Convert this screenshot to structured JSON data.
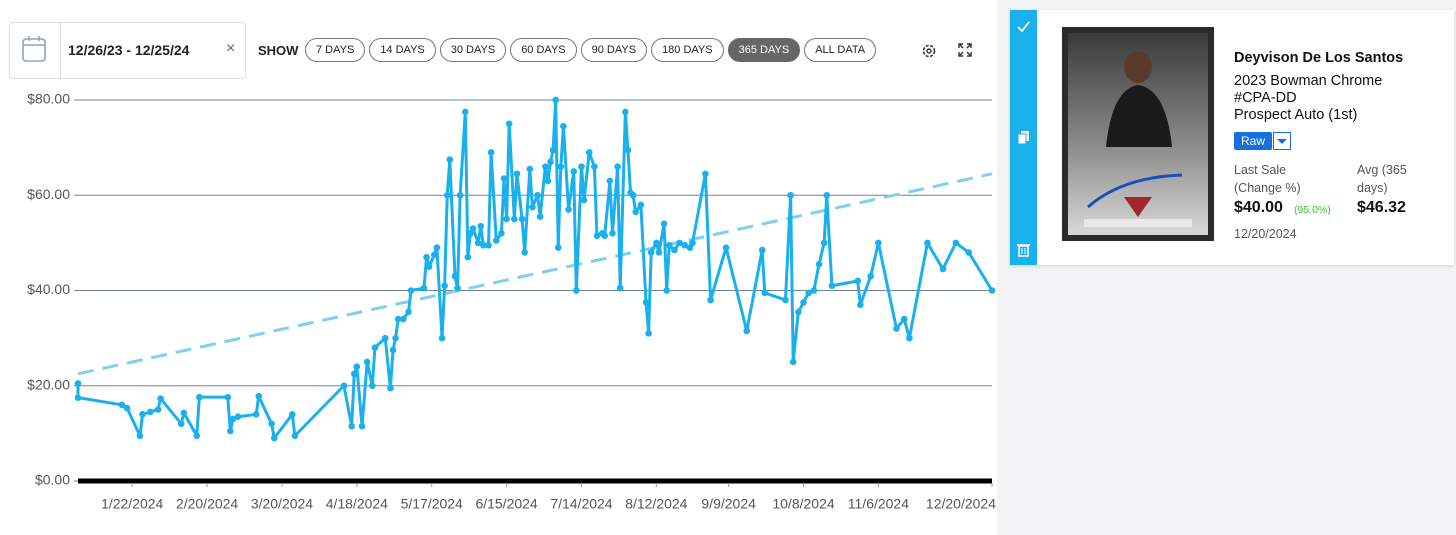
{
  "toolbar": {
    "date_range": "12/26/23 - 12/25/24",
    "show_label": "SHOW",
    "range_buttons": [
      "7 DAYS",
      "14 DAYS",
      "30 DAYS",
      "60 DAYS",
      "90 DAYS",
      "180 DAYS",
      "365 DAYS",
      "ALL DATA"
    ],
    "active_range": 6
  },
  "chart_data": {
    "type": "line",
    "x": [
      "2024-01-01",
      "2024-01-01",
      "2024-01-18",
      "2024-01-20",
      "2024-01-25",
      "2024-01-26",
      "2024-01-29",
      "2024-02-01",
      "2024-02-02",
      "2024-02-10",
      "2024-02-11",
      "2024-02-16",
      "2024-02-17",
      "2024-02-28",
      "2024-02-29",
      "2024-03-01",
      "2024-03-03",
      "2024-03-10",
      "2024-03-11",
      "2024-03-16",
      "2024-03-17",
      "2024-03-24",
      "2024-03-25",
      "2024-04-13",
      "2024-04-16",
      "2024-04-17",
      "2024-04-18",
      "2024-04-20",
      "2024-04-22",
      "2024-04-24",
      "2024-04-25",
      "2024-04-29",
      "2024-05-01",
      "2024-05-02",
      "2024-05-03",
      "2024-05-04",
      "2024-05-06",
      "2024-05-08",
      "2024-05-09",
      "2024-05-14",
      "2024-05-15",
      "2024-05-16",
      "2024-05-18",
      "2024-05-19",
      "2024-05-21",
      "2024-05-22",
      "2024-05-23",
      "2024-05-24",
      "2024-05-26",
      "2024-05-27",
      "2024-05-28",
      "2024-05-30",
      "2024-05-31",
      "2024-06-01",
      "2024-06-02",
      "2024-06-04",
      "2024-06-05",
      "2024-06-06",
      "2024-06-08",
      "2024-06-09",
      "2024-06-11",
      "2024-06-13",
      "2024-06-14",
      "2024-06-15",
      "2024-06-16",
      "2024-06-18",
      "2024-06-19",
      "2024-06-21",
      "2024-06-22",
      "2024-06-24",
      "2024-06-25",
      "2024-06-27",
      "2024-06-28",
      "2024-06-30",
      "2024-07-01",
      "2024-07-02",
      "2024-07-03",
      "2024-07-04",
      "2024-07-05",
      "2024-07-06",
      "2024-07-07",
      "2024-07-09",
      "2024-07-11",
      "2024-07-12",
      "2024-07-14",
      "2024-07-15",
      "2024-07-17",
      "2024-07-19",
      "2024-07-20",
      "2024-07-22",
      "2024-07-23",
      "2024-07-25",
      "2024-07-26",
      "2024-07-28",
      "2024-07-29",
      "2024-07-31",
      "2024-08-01",
      "2024-08-02",
      "2024-08-03",
      "2024-08-04",
      "2024-08-06",
      "2024-08-08",
      "2024-08-09",
      "2024-08-10",
      "2024-08-12",
      "2024-08-13",
      "2024-08-15",
      "2024-08-16",
      "2024-08-17",
      "2024-08-19",
      "2024-08-21",
      "2024-08-23",
      "2024-08-25",
      "2024-08-26",
      "2024-08-31",
      "2024-09-02",
      "2024-09-08",
      "2024-09-16",
      "2024-09-22",
      "2024-09-23",
      "2024-10-01",
      "2024-10-03",
      "2024-10-04",
      "2024-10-06",
      "2024-10-08",
      "2024-10-10",
      "2024-10-12",
      "2024-10-14",
      "2024-10-16",
      "2024-10-17",
      "2024-10-19",
      "2024-10-29",
      "2024-10-30",
      "2024-11-03",
      "2024-11-06",
      "2024-11-13",
      "2024-11-16",
      "2024-11-18",
      "2024-11-25",
      "2024-12-01",
      "2024-12-06",
      "2024-12-11",
      "2024-12-20"
    ],
    "series": [
      {
        "color": "#1ab0ec",
        "values": [
          20.5,
          17.5,
          16,
          15.3,
          9.5,
          14,
          14.5,
          15,
          17.3,
          12,
          14.3,
          9.5,
          17.6,
          17.6,
          10.5,
          13,
          13.5,
          14,
          17.8,
          12,
          9,
          14,
          9.5,
          20,
          11.5,
          22.5,
          24,
          11.5,
          25,
          20,
          28,
          30,
          19.5,
          27.5,
          30,
          34,
          34,
          35.5,
          40,
          40.5,
          47,
          45,
          47.5,
          49,
          30,
          41,
          60,
          67.5,
          43,
          40.5,
          60,
          77.5,
          47,
          52,
          53,
          50,
          53.5,
          49.5,
          49.5,
          69,
          50.5,
          52,
          63.5,
          55,
          75,
          55,
          64.5,
          55,
          48,
          65.5,
          57.5,
          60,
          55.5,
          66,
          63,
          67,
          69.5,
          80,
          49,
          66,
          74.5,
          57,
          65,
          40,
          66,
          59,
          69,
          66,
          51.5,
          52,
          51.5,
          63,
          52,
          66,
          40.5,
          77.5,
          69.5,
          60.5,
          60,
          56.5,
          58,
          37.5,
          31,
          48,
          50,
          48,
          54,
          40,
          49.5,
          48.5,
          50,
          49.5,
          49,
          50,
          64.5,
          38,
          49,
          31.5,
          48.5,
          39.5,
          38,
          60,
          25,
          35.5,
          37.5,
          39.5,
          40,
          45.5,
          50,
          60,
          41,
          42,
          37,
          43,
          50,
          32,
          34,
          30,
          50,
          44.5,
          50,
          48,
          40
        ]
      }
    ],
    "trend": {
      "color": "#7fcff0",
      "x": [
        "2024-01-01",
        "2024-12-20"
      ],
      "values": [
        22.5,
        64.5
      ]
    },
    "xlim": [
      "2024-01-01",
      "2024-12-20"
    ],
    "xticks": [
      {
        "value": "2024-01-22",
        "label": "1/22/2024"
      },
      {
        "value": "2024-02-20",
        "label": "2/20/2024"
      },
      {
        "value": "2024-03-20",
        "label": "3/20/2024"
      },
      {
        "value": "2024-04-18",
        "label": "4/18/2024"
      },
      {
        "value": "2024-05-17",
        "label": "5/17/2024"
      },
      {
        "value": "2024-06-15",
        "label": "6/15/2024"
      },
      {
        "value": "2024-07-14",
        "label": "7/14/2024"
      },
      {
        "value": "2024-08-12",
        "label": "8/12/2024"
      },
      {
        "value": "2024-09-09",
        "label": "9/9/2024"
      },
      {
        "value": "2024-10-08",
        "label": "10/8/2024"
      },
      {
        "value": "2024-11-06",
        "label": "11/6/2024"
      },
      {
        "value": "2024-12-20",
        "label": "12/20/2024"
      }
    ],
    "ylim": [
      0,
      80
    ],
    "yticks": [
      {
        "value": 0,
        "label": "$0.00"
      },
      {
        "value": 20,
        "label": "$20.00"
      },
      {
        "value": 40,
        "label": "$40.00"
      },
      {
        "value": 60,
        "label": "$60.00"
      },
      {
        "value": 80,
        "label": "$80.00"
      }
    ],
    "grid": true
  },
  "card": {
    "name": "Deyvison De Los Santos",
    "set": "2023 Bowman Chrome",
    "number": "#CPA-DD",
    "variant": "Prospect Auto (1st)",
    "grade": "Raw",
    "last_sale_label": "Last Sale (Change %)",
    "last_sale": "$40.00",
    "change": "(95.0%)",
    "last_sale_date": "12/20/2024",
    "avg_label": "Avg (365 days)",
    "avg": "$46.32"
  }
}
